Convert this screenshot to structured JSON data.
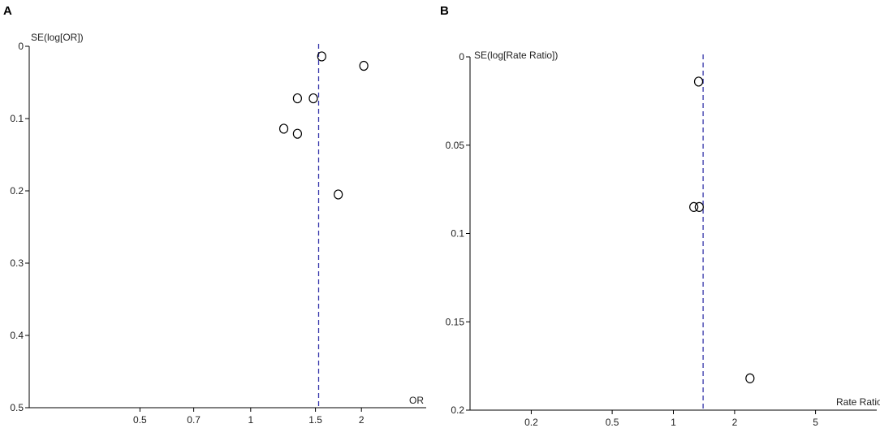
{
  "chart_data": [
    {
      "type": "scatter",
      "panel_label": "A",
      "title": "",
      "xlabel": "OR",
      "ylabel": "SE(log[OR])",
      "x_scale": "log",
      "y_reversed": true,
      "xlim": [
        0.25,
        3.0
      ],
      "ylim": [
        0,
        0.5
      ],
      "x_ticks": [
        0.5,
        0.7,
        1,
        1.5,
        2
      ],
      "x_tick_labels": [
        "0.5",
        "0.7",
        "1",
        "1.5",
        "2"
      ],
      "y_ticks": [
        0,
        0.1,
        0.2,
        0.3,
        0.4,
        0.5
      ],
      "y_tick_labels": [
        "0",
        "0.1",
        "0.2",
        "0.3",
        "0.4",
        "0.5"
      ],
      "reference_line_x": 1.53,
      "reference_line_color": "#3333aa",
      "grid": false,
      "points": [
        {
          "x": 1.56,
          "y": 0.014
        },
        {
          "x": 2.03,
          "y": 0.027
        },
        {
          "x": 1.34,
          "y": 0.072
        },
        {
          "x": 1.48,
          "y": 0.072
        },
        {
          "x": 1.23,
          "y": 0.114
        },
        {
          "x": 1.34,
          "y": 0.121
        },
        {
          "x": 1.73,
          "y": 0.205
        }
      ]
    },
    {
      "type": "scatter",
      "panel_label": "B",
      "title": "",
      "xlabel": "Rate Ratio",
      "ylabel": "SE(log[Rate Ratio])",
      "x_scale": "log",
      "y_reversed": true,
      "xlim": [
        0.1,
        10
      ],
      "ylim": [
        0,
        0.2
      ],
      "x_ticks": [
        0.2,
        0.5,
        1,
        2,
        5
      ],
      "x_tick_labels": [
        "0.2",
        "0.5",
        "1",
        "2",
        "5"
      ],
      "y_ticks": [
        0,
        0.05,
        0.1,
        0.15,
        0.2
      ],
      "y_tick_labels": [
        "0",
        "0.05",
        "0.1",
        "0.15",
        "0.2"
      ],
      "reference_line_x": 1.4,
      "reference_line_color": "#3333aa",
      "grid": false,
      "points": [
        {
          "x": 1.33,
          "y": 0.014
        },
        {
          "x": 1.26,
          "y": 0.085
        },
        {
          "x": 1.34,
          "y": 0.085
        },
        {
          "x": 2.38,
          "y": 0.182
        }
      ]
    }
  ]
}
